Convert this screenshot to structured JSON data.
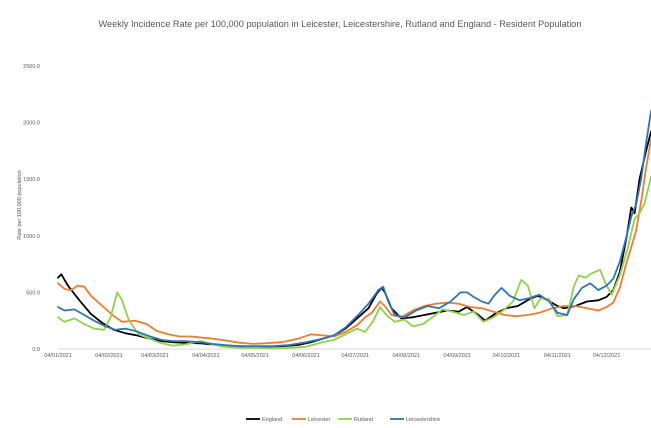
{
  "chart_data": {
    "type": "line",
    "title": "Weekly Incidence Rate per 100,000 population in Leicester, Leicestershire, Rutland and England - Resident Population",
    "ylabel": "Rate per 100,000 population",
    "xlabel": "",
    "ylim": [
      0,
      2500
    ],
    "y_ticks": [
      "0.0",
      "500.0",
      "1000.0",
      "1500.0",
      "2000.0",
      "2500.0"
    ],
    "x_ticks": [
      "04/01/2021",
      "04/02/2021",
      "04/03/2021",
      "04/04/2021",
      "04/05/2021",
      "04/06/2021",
      "04/07/2021",
      "04/08/2021",
      "04/09/2021",
      "04/10/2021",
      "04/11/2021",
      "04/12/2021"
    ],
    "x_range": [
      "2021-01-04",
      "2021-12-31"
    ],
    "grid": false,
    "legend_position": "bottom",
    "series": [
      {
        "name": "England",
        "color": "#000000",
        "points": [
          [
            "2021-01-04",
            630
          ],
          [
            "2021-01-06",
            660
          ],
          [
            "2021-01-10",
            560
          ],
          [
            "2021-01-17",
            430
          ],
          [
            "2021-01-24",
            310
          ],
          [
            "2021-01-31",
            230
          ],
          [
            "2021-02-07",
            170
          ],
          [
            "2021-02-14",
            140
          ],
          [
            "2021-02-21",
            120
          ],
          [
            "2021-03-01",
            90
          ],
          [
            "2021-03-08",
            70
          ],
          [
            "2021-03-15",
            60
          ],
          [
            "2021-03-22",
            55
          ],
          [
            "2021-04-01",
            50
          ],
          [
            "2021-04-08",
            40
          ],
          [
            "2021-04-15",
            30
          ],
          [
            "2021-04-22",
            25
          ],
          [
            "2021-05-01",
            22
          ],
          [
            "2021-05-10",
            22
          ],
          [
            "2021-05-20",
            25
          ],
          [
            "2021-05-30",
            35
          ],
          [
            "2021-06-07",
            60
          ],
          [
            "2021-06-14",
            90
          ],
          [
            "2021-06-21",
            120
          ],
          [
            "2021-06-28",
            180
          ],
          [
            "2021-07-05",
            270
          ],
          [
            "2021-07-12",
            360
          ],
          [
            "2021-07-17",
            490
          ],
          [
            "2021-07-20",
            540
          ],
          [
            "2021-07-22",
            500
          ],
          [
            "2021-07-26",
            360
          ],
          [
            "2021-08-01",
            270
          ],
          [
            "2021-08-08",
            280
          ],
          [
            "2021-08-15",
            300
          ],
          [
            "2021-08-22",
            320
          ],
          [
            "2021-08-29",
            340
          ],
          [
            "2021-09-05",
            330
          ],
          [
            "2021-09-10",
            370
          ],
          [
            "2021-09-17",
            300
          ],
          [
            "2021-09-21",
            250
          ],
          [
            "2021-09-27",
            310
          ],
          [
            "2021-10-04",
            360
          ],
          [
            "2021-10-11",
            380
          ],
          [
            "2021-10-18",
            440
          ],
          [
            "2021-10-23",
            470
          ],
          [
            "2021-10-28",
            440
          ],
          [
            "2021-11-04",
            380
          ],
          [
            "2021-11-08",
            360
          ],
          [
            "2021-11-15",
            380
          ],
          [
            "2021-11-22",
            420
          ],
          [
            "2021-11-29",
            430
          ],
          [
            "2021-12-04",
            460
          ],
          [
            "2021-12-08",
            520
          ],
          [
            "2021-12-12",
            680
          ],
          [
            "2021-12-16",
            980
          ],
          [
            "2021-12-19",
            1250
          ],
          [
            "2021-12-21",
            1200
          ],
          [
            "2021-12-24",
            1500
          ],
          [
            "2021-12-28",
            1750
          ],
          [
            "2021-12-31",
            1920
          ]
        ]
      },
      {
        "name": "Leicester",
        "color": "#ed7d31",
        "points": [
          [
            "2021-01-04",
            580
          ],
          [
            "2021-01-08",
            530
          ],
          [
            "2021-01-12",
            520
          ],
          [
            "2021-01-16",
            560
          ],
          [
            "2021-01-20",
            550
          ],
          [
            "2021-01-24",
            470
          ],
          [
            "2021-01-31",
            380
          ],
          [
            "2021-02-07",
            290
          ],
          [
            "2021-02-12",
            240
          ],
          [
            "2021-02-20",
            250
          ],
          [
            "2021-02-27",
            220
          ],
          [
            "2021-03-05",
            160
          ],
          [
            "2021-03-12",
            130
          ],
          [
            "2021-03-19",
            110
          ],
          [
            "2021-03-26",
            110
          ],
          [
            "2021-04-02",
            100
          ],
          [
            "2021-04-09",
            90
          ],
          [
            "2021-04-16",
            75
          ],
          [
            "2021-04-25",
            55
          ],
          [
            "2021-05-03",
            45
          ],
          [
            "2021-05-10",
            50
          ],
          [
            "2021-05-20",
            60
          ],
          [
            "2021-05-30",
            90
          ],
          [
            "2021-06-07",
            130
          ],
          [
            "2021-06-14",
            120
          ],
          [
            "2021-06-21",
            110
          ],
          [
            "2021-06-28",
            150
          ],
          [
            "2021-07-05",
            210
          ],
          [
            "2021-07-10",
            280
          ],
          [
            "2021-07-14",
            320
          ],
          [
            "2021-07-19",
            420
          ],
          [
            "2021-07-22",
            380
          ],
          [
            "2021-07-26",
            300
          ],
          [
            "2021-08-01",
            280
          ],
          [
            "2021-08-08",
            340
          ],
          [
            "2021-08-15",
            380
          ],
          [
            "2021-08-22",
            400
          ],
          [
            "2021-08-29",
            410
          ],
          [
            "2021-09-05",
            400
          ],
          [
            "2021-09-12",
            370
          ],
          [
            "2021-09-19",
            360
          ],
          [
            "2021-09-26",
            330
          ],
          [
            "2021-10-03",
            300
          ],
          [
            "2021-10-10",
            290
          ],
          [
            "2021-10-17",
            300
          ],
          [
            "2021-10-24",
            320
          ],
          [
            "2021-11-01",
            360
          ],
          [
            "2021-11-08",
            380
          ],
          [
            "2021-11-15",
            380
          ],
          [
            "2021-11-22",
            360
          ],
          [
            "2021-11-29",
            340
          ],
          [
            "2021-12-04",
            370
          ],
          [
            "2021-12-08",
            410
          ],
          [
            "2021-12-12",
            540
          ],
          [
            "2021-12-16",
            760
          ],
          [
            "2021-12-19",
            900
          ],
          [
            "2021-12-22",
            1050
          ],
          [
            "2021-12-25",
            1300
          ],
          [
            "2021-12-28",
            1600
          ],
          [
            "2021-12-31",
            1850
          ]
        ]
      },
      {
        "name": "Rutland",
        "color": "#92d050",
        "points": [
          [
            "2021-01-04",
            280
          ],
          [
            "2021-01-08",
            240
          ],
          [
            "2021-01-14",
            270
          ],
          [
            "2021-01-20",
            220
          ],
          [
            "2021-01-26",
            180
          ],
          [
            "2021-02-01",
            170
          ],
          [
            "2021-02-05",
            280
          ],
          [
            "2021-02-09",
            500
          ],
          [
            "2021-02-12",
            430
          ],
          [
            "2021-02-16",
            260
          ],
          [
            "2021-02-22",
            130
          ],
          [
            "2021-03-01",
            90
          ],
          [
            "2021-03-08",
            50
          ],
          [
            "2021-03-15",
            30
          ],
          [
            "2021-03-22",
            40
          ],
          [
            "2021-04-01",
            70
          ],
          [
            "2021-04-08",
            40
          ],
          [
            "2021-04-15",
            20
          ],
          [
            "2021-04-25",
            10
          ],
          [
            "2021-05-05",
            10
          ],
          [
            "2021-05-15",
            5
          ],
          [
            "2021-05-25",
            10
          ],
          [
            "2021-06-04",
            20
          ],
          [
            "2021-06-14",
            60
          ],
          [
            "2021-06-21",
            80
          ],
          [
            "2021-06-28",
            130
          ],
          [
            "2021-07-05",
            180
          ],
          [
            "2021-07-10",
            150
          ],
          [
            "2021-07-15",
            250
          ],
          [
            "2021-07-19",
            370
          ],
          [
            "2021-07-23",
            300
          ],
          [
            "2021-07-28",
            240
          ],
          [
            "2021-08-03",
            260
          ],
          [
            "2021-08-08",
            200
          ],
          [
            "2021-08-14",
            220
          ],
          [
            "2021-08-20",
            280
          ],
          [
            "2021-08-26",
            350
          ],
          [
            "2021-09-01",
            330
          ],
          [
            "2021-09-08",
            300
          ],
          [
            "2021-09-14",
            330
          ],
          [
            "2021-09-20",
            240
          ],
          [
            "2021-09-26",
            280
          ],
          [
            "2021-10-02",
            340
          ],
          [
            "2021-10-08",
            420
          ],
          [
            "2021-10-13",
            610
          ],
          [
            "2021-10-17",
            560
          ],
          [
            "2021-10-21",
            360
          ],
          [
            "2021-10-25",
            450
          ],
          [
            "2021-10-30",
            440
          ],
          [
            "2021-11-04",
            290
          ],
          [
            "2021-11-10",
            300
          ],
          [
            "2021-11-14",
            550
          ],
          [
            "2021-11-17",
            650
          ],
          [
            "2021-11-21",
            630
          ],
          [
            "2021-11-25",
            670
          ],
          [
            "2021-11-30",
            700
          ],
          [
            "2021-12-03",
            590
          ],
          [
            "2021-12-07",
            480
          ],
          [
            "2021-12-12",
            650
          ],
          [
            "2021-12-17",
            900
          ],
          [
            "2021-12-21",
            1150
          ],
          [
            "2021-12-24",
            1200
          ],
          [
            "2021-12-27",
            1280
          ],
          [
            "2021-12-31",
            1520
          ]
        ]
      },
      {
        "name": "Leicestershire",
        "color": "#2e75b6",
        "points": [
          [
            "2021-01-04",
            370
          ],
          [
            "2021-01-08",
            340
          ],
          [
            "2021-01-14",
            350
          ],
          [
            "2021-01-20",
            300
          ],
          [
            "2021-01-26",
            250
          ],
          [
            "2021-02-02",
            200
          ],
          [
            "2021-02-08",
            170
          ],
          [
            "2021-02-14",
            180
          ],
          [
            "2021-02-20",
            160
          ],
          [
            "2021-03-01",
            110
          ],
          [
            "2021-03-08",
            80
          ],
          [
            "2021-03-15",
            70
          ],
          [
            "2021-03-22",
            70
          ],
          [
            "2021-04-01",
            60
          ],
          [
            "2021-04-08",
            45
          ],
          [
            "2021-04-15",
            35
          ],
          [
            "2021-04-25",
            25
          ],
          [
            "2021-05-05",
            25
          ],
          [
            "2021-05-15",
            25
          ],
          [
            "2021-05-25",
            35
          ],
          [
            "2021-06-04",
            60
          ],
          [
            "2021-06-14",
            90
          ],
          [
            "2021-06-21",
            120
          ],
          [
            "2021-06-28",
            190
          ],
          [
            "2021-07-05",
            290
          ],
          [
            "2021-07-12",
            400
          ],
          [
            "2021-07-18",
            520
          ],
          [
            "2021-07-21",
            550
          ],
          [
            "2021-07-24",
            420
          ],
          [
            "2021-07-28",
            300
          ],
          [
            "2021-08-03",
            280
          ],
          [
            "2021-08-10",
            340
          ],
          [
            "2021-08-17",
            380
          ],
          [
            "2021-08-24",
            360
          ],
          [
            "2021-08-31",
            420
          ],
          [
            "2021-09-06",
            500
          ],
          [
            "2021-09-10",
            500
          ],
          [
            "2021-09-14",
            460
          ],
          [
            "2021-09-19",
            420
          ],
          [
            "2021-09-23",
            400
          ],
          [
            "2021-09-27",
            480
          ],
          [
            "2021-10-01",
            540
          ],
          [
            "2021-10-06",
            470
          ],
          [
            "2021-10-12",
            430
          ],
          [
            "2021-10-18",
            450
          ],
          [
            "2021-10-24",
            480
          ],
          [
            "2021-10-30",
            420
          ],
          [
            "2021-11-04",
            320
          ],
          [
            "2021-11-10",
            300
          ],
          [
            "2021-11-14",
            440
          ],
          [
            "2021-11-19",
            540
          ],
          [
            "2021-11-24",
            580
          ],
          [
            "2021-11-29",
            520
          ],
          [
            "2021-12-04",
            560
          ],
          [
            "2021-12-08",
            620
          ],
          [
            "2021-12-12",
            770
          ],
          [
            "2021-12-16",
            990
          ],
          [
            "2021-12-19",
            1170
          ],
          [
            "2021-12-22",
            1280
          ],
          [
            "2021-12-25",
            1500
          ],
          [
            "2021-12-28",
            1820
          ],
          [
            "2021-12-31",
            2100
          ]
        ]
      }
    ]
  }
}
